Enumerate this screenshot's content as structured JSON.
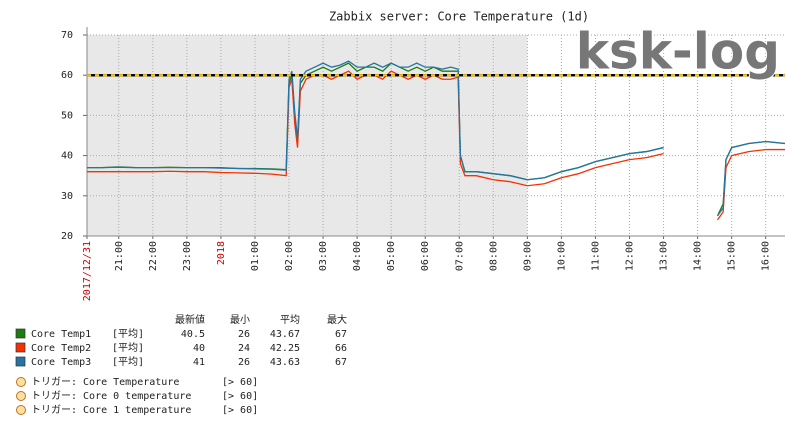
{
  "chart_data": {
    "type": "line",
    "title": "Zabbix server: Core Temperature (1d)",
    "watermark": "ksk-log",
    "x": [
      "20:04",
      "20:30",
      "21:00",
      "21:30",
      "22:00",
      "22:30",
      "23:00",
      "23:30",
      "00:00",
      "00:30",
      "01:00",
      "01:30",
      "01:55",
      "02:00",
      "02:05",
      "02:10",
      "02:15",
      "02:20",
      "02:30",
      "02:45",
      "03:00",
      "03:15",
      "03:30",
      "03:45",
      "04:00",
      "04:15",
      "04:30",
      "04:45",
      "05:00",
      "05:15",
      "05:30",
      "05:45",
      "06:00",
      "06:15",
      "06:30",
      "06:45",
      "06:58",
      "07:02",
      "07:10",
      "07:30",
      "08:00",
      "08:30",
      "09:00",
      "09:30",
      "10:00",
      "10:30",
      "11:00",
      "11:30",
      "12:00",
      "12:30",
      "13:00",
      "13:30",
      "14:35",
      "14:45",
      "14:50",
      "15:00",
      "15:30",
      "16:00",
      "16:34"
    ],
    "series": [
      {
        "name": "Core Temp1",
        "func": "[平均]",
        "color": "#1a7c11",
        "values": [
          37,
          37,
          37.2,
          37,
          37,
          37.1,
          37,
          37,
          37,
          36.8,
          36.8,
          36.7,
          36.5,
          58,
          60,
          50,
          44,
          58,
          60,
          61,
          62,
          61,
          62,
          63,
          61,
          62,
          62,
          61,
          63,
          62,
          61,
          62,
          61,
          62,
          61,
          61,
          61,
          40,
          36,
          36,
          35.5,
          35,
          34,
          34.5,
          36,
          37,
          38.5,
          39.5,
          40.5,
          41,
          42,
          null,
          25,
          28,
          39,
          42,
          43,
          43.5,
          43
        ],
        "last": 40.5,
        "min": 26,
        "avg": 43.67,
        "max": 67
      },
      {
        "name": "Core Temp2",
        "func": "[平均]",
        "color": "#f63100",
        "values": [
          36,
          36,
          36,
          36,
          36,
          36.1,
          36,
          36,
          35.8,
          35.7,
          35.6,
          35.4,
          35,
          57,
          59,
          48,
          42,
          56,
          59,
          60,
          60,
          59,
          60,
          61,
          59,
          60,
          60,
          59,
          61,
          60,
          59,
          60,
          59,
          60,
          59,
          59,
          59.5,
          38,
          35,
          35,
          34,
          33.5,
          32.5,
          33,
          34.5,
          35.5,
          37,
          38,
          39,
          39.5,
          40.5,
          null,
          24,
          26,
          37,
          40,
          41,
          41.5,
          41.5
        ],
        "last": 40,
        "min": 24,
        "avg": 42.25,
        "max": 66
      },
      {
        "name": "Core Temp3",
        "func": "[平均]",
        "color": "#2774a4",
        "values": [
          37,
          37,
          37.1,
          37,
          37,
          37,
          37,
          37,
          36.9,
          36.8,
          36.7,
          36.6,
          36.4,
          59,
          61,
          51,
          44,
          59,
          61,
          62,
          63,
          62,
          62.5,
          63.5,
          62,
          62,
          63,
          62,
          63,
          62,
          62,
          63,
          62,
          62,
          61.5,
          62,
          61.5,
          40,
          36,
          36,
          35.5,
          35,
          34,
          34.5,
          36,
          37,
          38.5,
          39.5,
          40.5,
          41,
          42,
          null,
          25,
          27,
          39,
          42,
          43,
          43.5,
          43
        ],
        "last": 41,
        "min": 26,
        "avg": 43.63,
        "max": 67
      }
    ],
    "legend_headers": [
      "最新値",
      "最小",
      "平均",
      "最大"
    ],
    "triggers": [
      {
        "name": "トリガー: Core Temperature",
        "value": 60,
        "value_label": "[> 60]"
      },
      {
        "name": "トリガー: Core 0 temperature",
        "value": 60,
        "value_label": "[> 60]"
      },
      {
        "name": "トリガー: Core 1 temperature",
        "value": 60,
        "value_label": "[> 60]"
      }
    ],
    "xlim": [
      "20:04",
      "16:34"
    ],
    "xticks": [
      {
        "value": "20:04",
        "label": "2017/12/31",
        "color": "#cc0000"
      },
      "21:00",
      "22:00",
      "23:00",
      {
        "value": "00:00",
        "label": "2018",
        "color": "#cc0000"
      },
      "01:00",
      "02:00",
      "03:00",
      "04:00",
      "05:00",
      "06:00",
      "07:00",
      "08:00",
      "09:00",
      "10:00",
      "11:00",
      "12:00",
      "13:00",
      "14:00",
      "15:00",
      "16:00"
    ],
    "shaded_xlim": [
      "20:04",
      "09:00"
    ],
    "ylim": [
      20,
      70
    ],
    "yticks": [
      20,
      30,
      40,
      50,
      60,
      70
    ],
    "grid": true
  }
}
